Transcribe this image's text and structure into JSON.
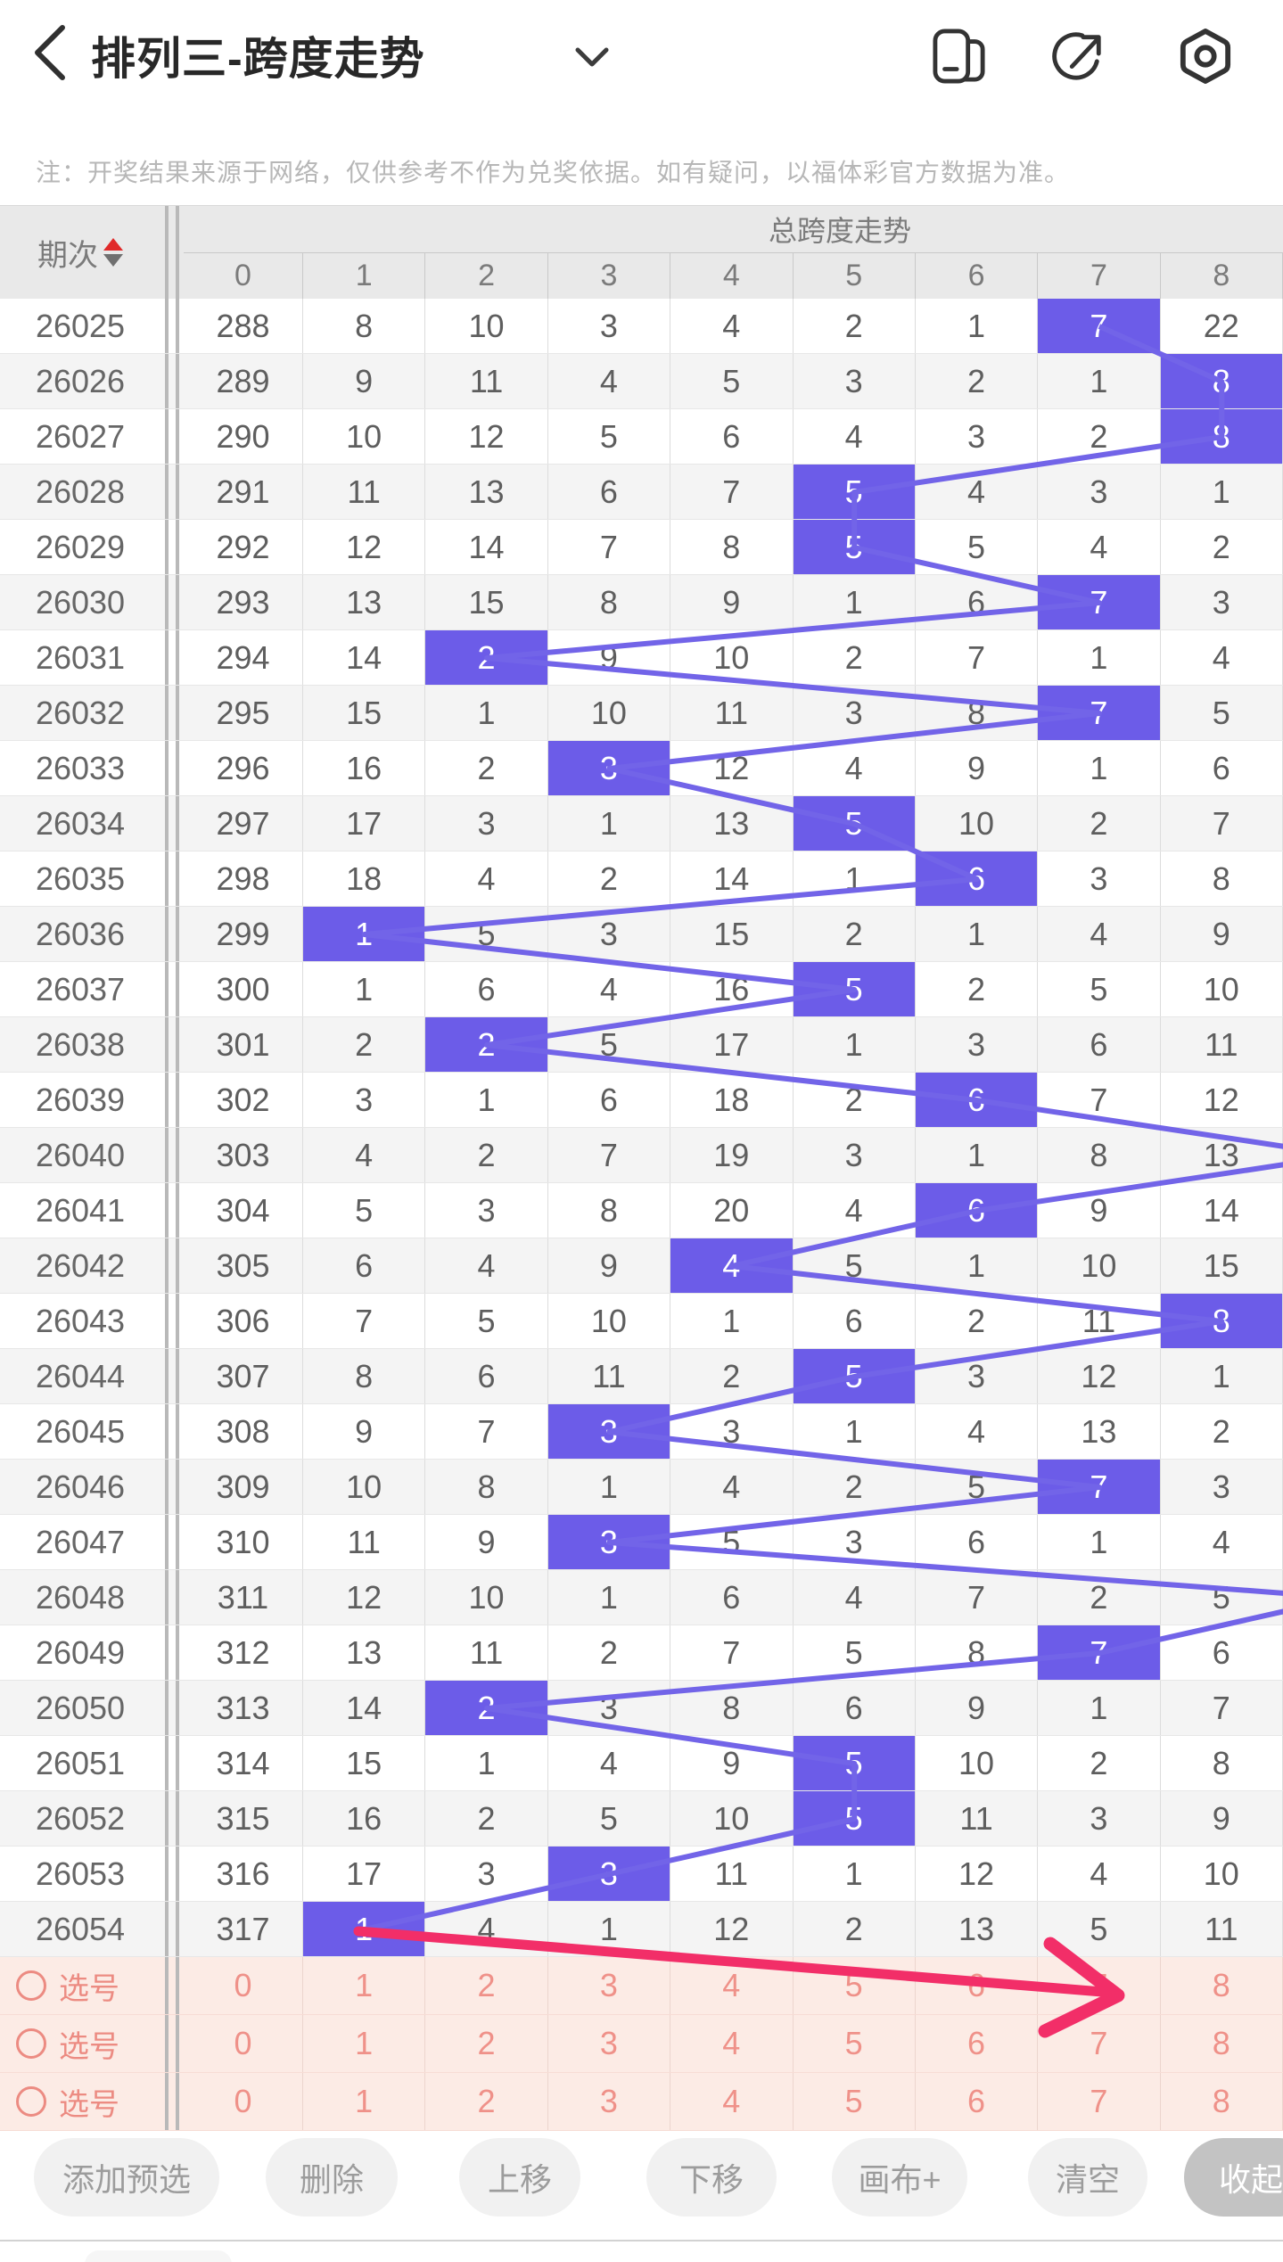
{
  "header": {
    "title": "排列三-跨度走势",
    "icons": [
      "back-icon",
      "chevron-down-icon",
      "multitask-icon",
      "share-icon",
      "settings-icon"
    ]
  },
  "note": "注：开奖结果来源于网络，仅供参考不作为兑奖依据。如有疑问，以福体彩官方数据为准。",
  "table": {
    "period_header": "期次",
    "group_header": "总跨度走势",
    "columns": [
      "0",
      "1",
      "2",
      "3",
      "4",
      "5",
      "6",
      "7",
      "8"
    ],
    "rows": [
      {
        "period": "26025",
        "values": [
          288,
          8,
          10,
          3,
          4,
          2,
          1,
          7,
          22
        ],
        "hit": 7
      },
      {
        "period": "26026",
        "values": [
          289,
          9,
          11,
          4,
          5,
          3,
          2,
          1,
          8
        ],
        "hit": 8
      },
      {
        "period": "26027",
        "values": [
          290,
          10,
          12,
          5,
          6,
          4,
          3,
          2,
          8
        ],
        "hit": 8
      },
      {
        "period": "26028",
        "values": [
          291,
          11,
          13,
          6,
          7,
          5,
          4,
          3,
          1
        ],
        "hit": 5
      },
      {
        "period": "26029",
        "values": [
          292,
          12,
          14,
          7,
          8,
          5,
          5,
          4,
          2
        ],
        "hit": 5
      },
      {
        "period": "26030",
        "values": [
          293,
          13,
          15,
          8,
          9,
          1,
          6,
          7,
          3
        ],
        "hit": 7
      },
      {
        "period": "26031",
        "values": [
          294,
          14,
          2,
          9,
          10,
          2,
          7,
          1,
          4
        ],
        "hit": 2
      },
      {
        "period": "26032",
        "values": [
          295,
          15,
          1,
          10,
          11,
          3,
          8,
          7,
          5
        ],
        "hit": 7
      },
      {
        "period": "26033",
        "values": [
          296,
          16,
          2,
          3,
          12,
          4,
          9,
          1,
          6
        ],
        "hit": 3
      },
      {
        "period": "26034",
        "values": [
          297,
          17,
          3,
          1,
          13,
          5,
          10,
          2,
          7
        ],
        "hit": 5
      },
      {
        "period": "26035",
        "values": [
          298,
          18,
          4,
          2,
          14,
          1,
          6,
          3,
          8
        ],
        "hit": 6
      },
      {
        "period": "26036",
        "values": [
          299,
          1,
          5,
          3,
          15,
          2,
          1,
          4,
          9
        ],
        "hit": 1
      },
      {
        "period": "26037",
        "values": [
          300,
          1,
          6,
          4,
          16,
          5,
          2,
          5,
          10
        ],
        "hit": 5
      },
      {
        "period": "26038",
        "values": [
          301,
          2,
          2,
          5,
          17,
          1,
          3,
          6,
          11
        ],
        "hit": 2
      },
      {
        "period": "26039",
        "values": [
          302,
          3,
          1,
          6,
          18,
          2,
          6,
          7,
          12
        ],
        "hit": 6
      },
      {
        "period": "26040",
        "values": [
          303,
          4,
          2,
          7,
          19,
          3,
          1,
          8,
          13
        ],
        "hit": null
      },
      {
        "period": "26041",
        "values": [
          304,
          5,
          3,
          8,
          20,
          4,
          6,
          9,
          14
        ],
        "hit": 6
      },
      {
        "period": "26042",
        "values": [
          305,
          6,
          4,
          9,
          4,
          5,
          1,
          10,
          15
        ],
        "hit": 4
      },
      {
        "period": "26043",
        "values": [
          306,
          7,
          5,
          10,
          1,
          6,
          2,
          11,
          8
        ],
        "hit": 8
      },
      {
        "period": "26044",
        "values": [
          307,
          8,
          6,
          11,
          2,
          5,
          3,
          12,
          1
        ],
        "hit": 5
      },
      {
        "period": "26045",
        "values": [
          308,
          9,
          7,
          3,
          3,
          1,
          4,
          13,
          2
        ],
        "hit": 3
      },
      {
        "period": "26046",
        "values": [
          309,
          10,
          8,
          1,
          4,
          2,
          5,
          7,
          3
        ],
        "hit": 7
      },
      {
        "period": "26047",
        "values": [
          310,
          11,
          9,
          3,
          5,
          3,
          6,
          1,
          4
        ],
        "hit": 3
      },
      {
        "period": "26048",
        "values": [
          311,
          12,
          10,
          1,
          6,
          4,
          7,
          2,
          5
        ],
        "hit": null
      },
      {
        "period": "26049",
        "values": [
          312,
          13,
          11,
          2,
          7,
          5,
          8,
          7,
          6
        ],
        "hit": 7
      },
      {
        "period": "26050",
        "values": [
          313,
          14,
          2,
          3,
          8,
          6,
          9,
          1,
          7
        ],
        "hit": 2
      },
      {
        "period": "26051",
        "values": [
          314,
          15,
          1,
          4,
          9,
          5,
          10,
          2,
          8
        ],
        "hit": 5
      },
      {
        "period": "26052",
        "values": [
          315,
          16,
          2,
          5,
          10,
          5,
          11,
          3,
          9
        ],
        "hit": 5
      },
      {
        "period": "26053",
        "values": [
          316,
          17,
          3,
          3,
          11,
          1,
          12,
          4,
          10
        ],
        "hit": 3
      },
      {
        "period": "26054",
        "values": [
          317,
          1,
          4,
          1,
          12,
          2,
          13,
          5,
          11
        ],
        "hit": 1
      }
    ],
    "pick_rows": [
      {
        "label": "选号",
        "values": [
          "0",
          "1",
          "2",
          "3",
          "4",
          "5",
          "6",
          "7",
          "8"
        ]
      },
      {
        "label": "选号",
        "values": [
          "0",
          "1",
          "2",
          "3",
          "4",
          "5",
          "6",
          "7",
          "8"
        ]
      },
      {
        "label": "选号",
        "values": [
          "0",
          "1",
          "2",
          "3",
          "4",
          "5",
          "6",
          "7",
          "8"
        ]
      }
    ]
  },
  "toolbar": {
    "buttons": [
      {
        "label": "添加预选",
        "variant": "normal"
      },
      {
        "label": "删除",
        "variant": "normal"
      },
      {
        "label": "上移",
        "variant": "normal"
      },
      {
        "label": "下移",
        "variant": "normal"
      },
      {
        "label": "画布+",
        "variant": "normal"
      },
      {
        "label": "清空",
        "variant": "normal"
      },
      {
        "label": "收起",
        "variant": "active"
      }
    ]
  },
  "colors": {
    "highlight": "#6C5CE8",
    "trend_line": "#7264E8",
    "annotation_arrow": "#F22E68",
    "pick_text": "#EC8B82",
    "pick_bg": "#FCEBE5",
    "sort_up": "#E02A2A",
    "sort_down": "#707070"
  }
}
